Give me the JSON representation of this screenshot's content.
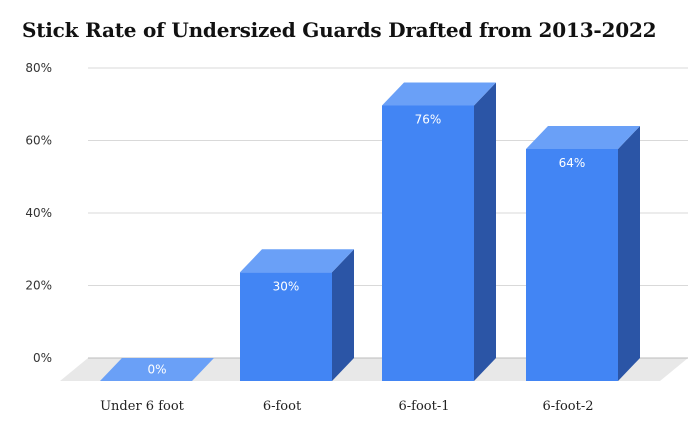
{
  "chart_data": {
    "type": "bar",
    "title": "Stick Rate of Undersized Guards Drafted from 2013-2022",
    "categories": [
      "Under 6 foot",
      "6-foot",
      "6-foot-1",
      "6-foot-2"
    ],
    "values": [
      0,
      30,
      76,
      64
    ],
    "value_labels": [
      "0%",
      "30%",
      "76%",
      "64%"
    ],
    "y_ticks": [
      0,
      20,
      40,
      60,
      80
    ],
    "y_tick_labels": [
      "0%",
      "20%",
      "40%",
      "60%",
      "80%"
    ],
    "ylim": [
      0,
      80
    ],
    "style": "3d",
    "grid": true,
    "colors": {
      "front": "#4285f4",
      "side": "#2b55a6",
      "top": "#6aa0f7",
      "floor": "#e8e8e8",
      "grid": "#d9d9d9"
    }
  }
}
